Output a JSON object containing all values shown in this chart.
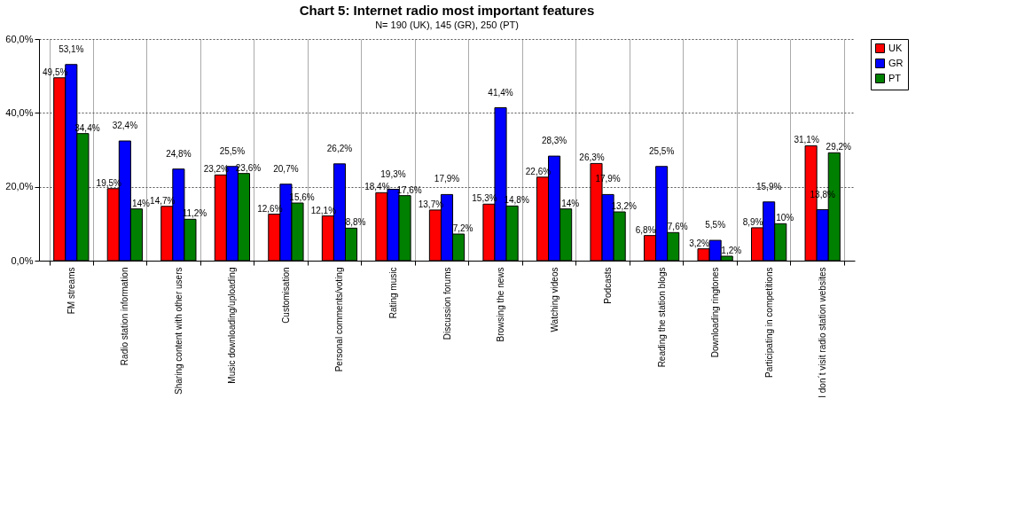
{
  "chart_data": {
    "type": "bar",
    "title": "Chart 5: Internet radio most important features",
    "subtitle": "N= 190 (UK), 145 (GR), 250 (PT)",
    "categories": [
      "FM streams",
      "Radio station information",
      "Sharing content with other users",
      "Music downloading/uploading",
      "Customisation",
      "Personal comments/voting",
      "Rating music",
      "Discussion forums",
      "Browsing the news",
      "Watching videos",
      "Podcasts",
      "Reading the station blogs",
      "Downloading ringtones",
      "Participating in competitions",
      "I don´t visit radio station websites"
    ],
    "series": [
      {
        "name": "UK",
        "color": "#ff0000",
        "values": [
          49.5,
          19.5,
          14.7,
          23.2,
          12.6,
          12.1,
          18.4,
          13.7,
          15.3,
          22.6,
          26.3,
          6.8,
          3.2,
          8.9,
          31.1
        ],
        "value_labels": [
          "49,5%",
          "19,5%",
          "14,7%",
          "23,2%",
          "12,6%",
          "12,1%",
          "18,4%",
          "13,7%",
          "15,3%",
          "22,6%",
          "26,3%",
          "6,8%",
          "3,2%",
          "8,9%",
          "31,1%"
        ]
      },
      {
        "name": "GR",
        "color": "#0000ff",
        "values": [
          53.1,
          32.4,
          24.8,
          25.5,
          20.7,
          26.2,
          19.3,
          17.9,
          41.4,
          28.3,
          17.9,
          25.5,
          5.5,
          15.9,
          13.8
        ],
        "value_labels": [
          "53,1%",
          "32,4%",
          "24,8%",
          "25,5%",
          "20,7%",
          "26,2%",
          "19,3%",
          "17,9%",
          "41,4%",
          "28,3%",
          "17,9%",
          "25,5%",
          "5,5%",
          "15,9%",
          "13,8%"
        ]
      },
      {
        "name": "PT",
        "color": "#008000",
        "values": [
          34.4,
          14,
          11.2,
          23.6,
          15.6,
          8.8,
          17.6,
          7.2,
          14.8,
          14,
          13.2,
          7.6,
          1.2,
          10,
          29.2
        ],
        "value_labels": [
          "34,4%",
          "14%",
          "11,2%",
          "23,6%",
          "15,6%",
          "8,8%",
          "17,6%",
          "7,2%",
          "14,8%",
          "14%",
          "13,2%",
          "7,6%",
          "1,2%",
          "10%",
          "29,2%"
        ]
      }
    ],
    "ylim": [
      0,
      60
    ],
    "yticks": [
      {
        "value": 0,
        "label": "0,0%"
      },
      {
        "value": 20,
        "label": "20,0%"
      },
      {
        "value": 40,
        "label": "40,0%"
      },
      {
        "value": 60,
        "label": "60,0%"
      }
    ],
    "grid": true,
    "legend": "top right"
  }
}
